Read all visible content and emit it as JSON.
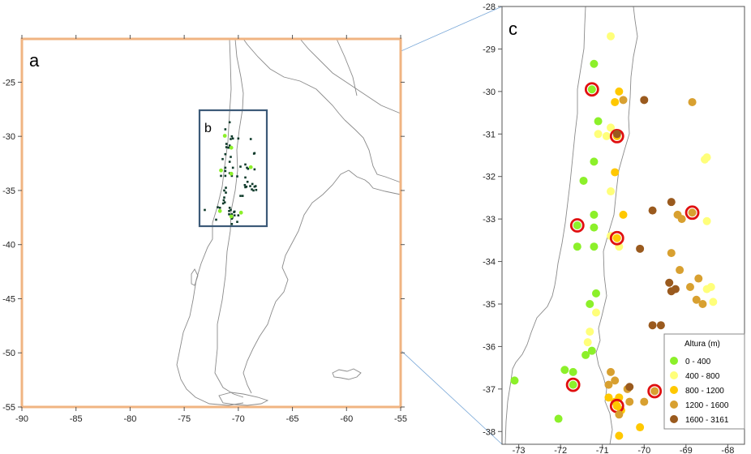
{
  "panels": {
    "a_label": "a",
    "b_label": "b",
    "c_label": "c"
  },
  "colors": {
    "frame_a": "#f0b482",
    "box_b": "#3c5a78",
    "connector": "#7aa8d8",
    "station_dark": "#0e3a2a",
    "station_green": "#8cf02a",
    "highlight_ring": "#e01010",
    "coast": "#8a8a8a"
  },
  "map_a": {
    "x_ticks": [
      "-90",
      "-85",
      "-80",
      "-75",
      "-70",
      "-65",
      "-60",
      "-55"
    ],
    "y_ticks": [
      "-25",
      "-30",
      "-35",
      "-40",
      "-45",
      "-50",
      "-55"
    ],
    "xlim": [
      -90,
      -55
    ],
    "ylim": [
      -55,
      -21
    ]
  },
  "map_c": {
    "x_ticks": [
      "-73",
      "-72",
      "-71",
      "-70",
      "-69",
      "-68"
    ],
    "y_ticks": [
      "-28",
      "-29",
      "-30",
      "-31",
      "-32",
      "-33",
      "-34",
      "-35",
      "-36",
      "-37",
      "-38"
    ],
    "xlim": [
      -73.4,
      -67.6
    ],
    "ylim": [
      -38.3,
      -28
    ]
  },
  "legend": {
    "title": "Altura (m)",
    "classes": [
      {
        "label": "0  -  400",
        "color": "#8cf02a"
      },
      {
        "label": "400  -  800",
        "color": "#ffff7a"
      },
      {
        "label": "800  -  1200",
        "color": "#ffc800"
      },
      {
        "label": "1200  -  1600",
        "color": "#d8a030"
      },
      {
        "label": "1600  -  3161",
        "color": "#9a5a1e"
      }
    ]
  },
  "stations": [
    {
      "lon": -71.2,
      "lat": -29.35,
      "cls": 0
    },
    {
      "lon": -71.25,
      "lat": -29.95,
      "cls": 0,
      "ring": true
    },
    {
      "lon": -71.1,
      "lat": -30.7,
      "cls": 0
    },
    {
      "lon": -71.2,
      "lat": -31.65,
      "cls": 0
    },
    {
      "lon": -71.45,
      "lat": -32.1,
      "cls": 0
    },
    {
      "lon": -71.2,
      "lat": -32.9,
      "cls": 0
    },
    {
      "lon": -71.6,
      "lat": -33.15,
      "cls": 0,
      "ring": true
    },
    {
      "lon": -71.6,
      "lat": -33.65,
      "cls": 0
    },
    {
      "lon": -71.2,
      "lat": -33.65,
      "cls": 0
    },
    {
      "lon": -71.2,
      "lat": -33.2,
      "cls": 0
    },
    {
      "lon": -71.15,
      "lat": -34.75,
      "cls": 0
    },
    {
      "lon": -71.3,
      "lat": -35.0,
      "cls": 0
    },
    {
      "lon": -71.25,
      "lat": -36.1,
      "cls": 0
    },
    {
      "lon": -71.4,
      "lat": -36.2,
      "cls": 0
    },
    {
      "lon": -71.9,
      "lat": -36.55,
      "cls": 0
    },
    {
      "lon": -71.7,
      "lat": -36.6,
      "cls": 0
    },
    {
      "lon": -71.7,
      "lat": -36.9,
      "cls": 0,
      "ring": true
    },
    {
      "lon": -72.05,
      "lat": -37.7,
      "cls": 0
    },
    {
      "lon": -73.1,
      "lat": -36.8,
      "cls": 0
    },
    {
      "lon": -70.8,
      "lat": -28.7,
      "cls": 1
    },
    {
      "lon": -71.1,
      "lat": -31.0,
      "cls": 1
    },
    {
      "lon": -70.9,
      "lat": -31.05,
      "cls": 1
    },
    {
      "lon": -70.8,
      "lat": -30.85,
      "cls": 1
    },
    {
      "lon": -70.8,
      "lat": -32.35,
      "cls": 1
    },
    {
      "lon": -70.6,
      "lat": -33.65,
      "cls": 1
    },
    {
      "lon": -70.8,
      "lat": -33.4,
      "cls": 1
    },
    {
      "lon": -71.15,
      "lat": -35.2,
      "cls": 1
    },
    {
      "lon": -71.3,
      "lat": -35.65,
      "cls": 1
    },
    {
      "lon": -71.35,
      "lat": -35.9,
      "cls": 1
    },
    {
      "lon": -68.55,
      "lat": -31.6,
      "cls": 1
    },
    {
      "lon": -68.5,
      "lat": -31.55,
      "cls": 1
    },
    {
      "lon": -68.5,
      "lat": -33.05,
      "cls": 1
    },
    {
      "lon": -68.4,
      "lat": -34.6,
      "cls": 1
    },
    {
      "lon": -68.35,
      "lat": -34.95,
      "cls": 1
    },
    {
      "lon": -68.5,
      "lat": -34.65,
      "cls": 1
    },
    {
      "lon": -70.6,
      "lat": -30.0,
      "cls": 2
    },
    {
      "lon": -70.7,
      "lat": -30.25,
      "cls": 2
    },
    {
      "lon": -70.65,
      "lat": -31.05,
      "cls": 2,
      "ring": true
    },
    {
      "lon": -70.7,
      "lat": -31.9,
      "cls": 2
    },
    {
      "lon": -70.5,
      "lat": -32.9,
      "cls": 2
    },
    {
      "lon": -70.65,
      "lat": -33.45,
      "cls": 2,
      "ring": true
    },
    {
      "lon": -70.85,
      "lat": -37.2,
      "cls": 2
    },
    {
      "lon": -70.7,
      "lat": -37.3,
      "cls": 2
    },
    {
      "lon": -70.6,
      "lat": -37.2,
      "cls": 2
    },
    {
      "lon": -70.55,
      "lat": -37.5,
      "cls": 2
    },
    {
      "lon": -70.6,
      "lat": -38.1,
      "cls": 2
    },
    {
      "lon": -70.1,
      "lat": -37.9,
      "cls": 2
    },
    {
      "lon": -70.65,
      "lat": -37.4,
      "cls": 2,
      "ring": true
    },
    {
      "lon": -70.5,
      "lat": -30.2,
      "cls": 3
    },
    {
      "lon": -68.85,
      "lat": -30.25,
      "cls": 3
    },
    {
      "lon": -69.2,
      "lat": -32.9,
      "cls": 3
    },
    {
      "lon": -69.1,
      "lat": -33.0,
      "cls": 3
    },
    {
      "lon": -69.35,
      "lat": -33.8,
      "cls": 3
    },
    {
      "lon": -69.15,
      "lat": -34.2,
      "cls": 3
    },
    {
      "lon": -68.9,
      "lat": -34.6,
      "cls": 3
    },
    {
      "lon": -68.7,
      "lat": -34.4,
      "cls": 3
    },
    {
      "lon": -68.6,
      "lat": -35.0,
      "cls": 3
    },
    {
      "lon": -68.75,
      "lat": -34.9,
      "cls": 3
    },
    {
      "lon": -70.8,
      "lat": -36.6,
      "cls": 3
    },
    {
      "lon": -70.85,
      "lat": -36.9,
      "cls": 3
    },
    {
      "lon": -70.7,
      "lat": -36.8,
      "cls": 3
    },
    {
      "lon": -70.4,
      "lat": -37.0,
      "cls": 3
    },
    {
      "lon": -70.35,
      "lat": -37.3,
      "cls": 3
    },
    {
      "lon": -70.0,
      "lat": -37.3,
      "cls": 3
    },
    {
      "lon": -70.6,
      "lat": -37.6,
      "cls": 3
    },
    {
      "lon": -68.85,
      "lat": -32.85,
      "cls": 3,
      "ring": true
    },
    {
      "lon": -69.75,
      "lat": -37.05,
      "cls": 3,
      "ring": true
    },
    {
      "lon": -70.0,
      "lat": -30.2,
      "cls": 4
    },
    {
      "lon": -70.65,
      "lat": -31.0,
      "cls": 4
    },
    {
      "lon": -69.8,
      "lat": -32.8,
      "cls": 4
    },
    {
      "lon": -69.35,
      "lat": -32.6,
      "cls": 4
    },
    {
      "lon": -70.1,
      "lat": -33.7,
      "cls": 4
    },
    {
      "lon": -69.4,
      "lat": -34.5,
      "cls": 4
    },
    {
      "lon": -69.35,
      "lat": -34.7,
      "cls": 4
    },
    {
      "lon": -69.25,
      "lat": -34.65,
      "cls": 4
    },
    {
      "lon": -69.8,
      "lat": -35.5,
      "cls": 4
    },
    {
      "lon": -69.6,
      "lat": -35.5,
      "cls": 4
    },
    {
      "lon": -70.35,
      "lat": -36.95,
      "cls": 4
    }
  ],
  "ring_stations_a": [
    {
      "lon": -71.25,
      "lat": -29.95
    },
    {
      "lon": -70.65,
      "lat": -31.05
    },
    {
      "lon": -71.6,
      "lat": -33.15
    },
    {
      "lon": -70.65,
      "lat": -33.45
    },
    {
      "lon": -68.85,
      "lat": -32.85
    },
    {
      "lon": -71.7,
      "lat": -36.9
    },
    {
      "lon": -70.65,
      "lat": -37.4
    },
    {
      "lon": -69.75,
      "lat": -37.05
    }
  ]
}
